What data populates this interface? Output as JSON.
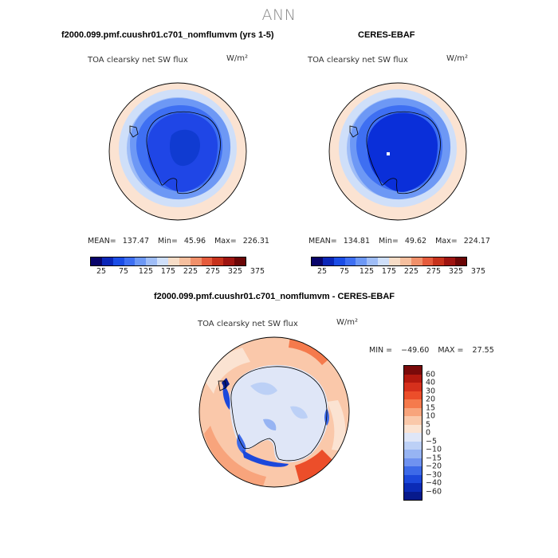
{
  "title": "ANN",
  "units": "W/m²",
  "panels": [
    {
      "id": "model",
      "title": "f2000.099.pmf.cuushr01.c701_nomflumvm (yrs 1-5)",
      "variable": "TOA clearsky net SW flux",
      "stats": {
        "mean_label": "MEAN=",
        "mean": "137.47",
        "min_label": "Min=",
        "min": "45.96",
        "max_label": "Max=",
        "max": "226.31"
      },
      "interior_color": "#1f46e6",
      "core_color": "#103bd1"
    },
    {
      "id": "obs",
      "title": "CERES-EBAF",
      "variable": "TOA clearsky net SW flux",
      "stats": {
        "mean_label": "MEAN=",
        "mean": "134.81",
        "min_label": "Min=",
        "min": "49.62",
        "max_label": "Max=",
        "max": "224.17"
      },
      "interior_color": "#0a2fd9",
      "core_color": "#0a2fd9"
    }
  ],
  "colorbar_abs": {
    "colors": [
      "#08046a",
      "#0a26b8",
      "#1b4de6",
      "#3e6ff2",
      "#6d98f5",
      "#9fbdf7",
      "#cfdff9",
      "#f7ddc7",
      "#f6bf9e",
      "#f0906a",
      "#e55b3c",
      "#c7321c",
      "#9e1410",
      "#6b0606"
    ],
    "labels": [
      "25",
      "75",
      "125",
      "175",
      "225",
      "275",
      "325",
      "375"
    ]
  },
  "diff_panel": {
    "title": "f2000.099.pmf.cuushr01.c701_nomflumvm - CERES-EBAF",
    "variable": "TOA clearsky net SW flux",
    "min_label": "MIN =",
    "min": "−49.60",
    "max_label": "MAX =",
    "max": "27.55"
  },
  "colorbar_diff": {
    "colors": [
      "#7a0a0a",
      "#b3190f",
      "#d6301c",
      "#ec4e2a",
      "#f57a4c",
      "#f8a47c",
      "#fac8aa",
      "#fbe3d2",
      "#dfe6f7",
      "#bcd0f6",
      "#97b4f3",
      "#6f92f0",
      "#3d6ae8",
      "#1c48db",
      "#0b2bb6",
      "#071a8c"
    ],
    "labels": [
      "60",
      "40",
      "30",
      "20",
      "15",
      "10",
      "5",
      "0",
      "−5",
      "−10",
      "−15",
      "−20",
      "−30",
      "−40",
      "−60"
    ]
  },
  "chart_data": {
    "type": "heatmap",
    "projection": "south polar stereographic",
    "season": "ANN",
    "variable": "TOA clearsky net SW flux",
    "units": "W/m²",
    "maps": [
      {
        "name": "f2000.099.pmf.cuushr01.c701_nomflumvm (yrs 1-5)",
        "mean": 137.47,
        "min": 45.96,
        "max": 226.31
      },
      {
        "name": "CERES-EBAF",
        "mean": 134.81,
        "min": 49.62,
        "max": 224.17
      },
      {
        "name": "f2000.099.pmf.cuushr01.c701_nomflumvm - CERES-EBAF",
        "min": -49.6,
        "max": 27.55
      }
    ],
    "abs_levels": [
      25,
      50,
      75,
      100,
      125,
      150,
      175,
      200,
      225,
      250,
      275,
      300,
      325,
      350,
      375
    ],
    "diff_levels": [
      -60,
      -40,
      -30,
      -20,
      -15,
      -10,
      -5,
      0,
      5,
      10,
      15,
      20,
      30,
      40,
      60
    ]
  }
}
